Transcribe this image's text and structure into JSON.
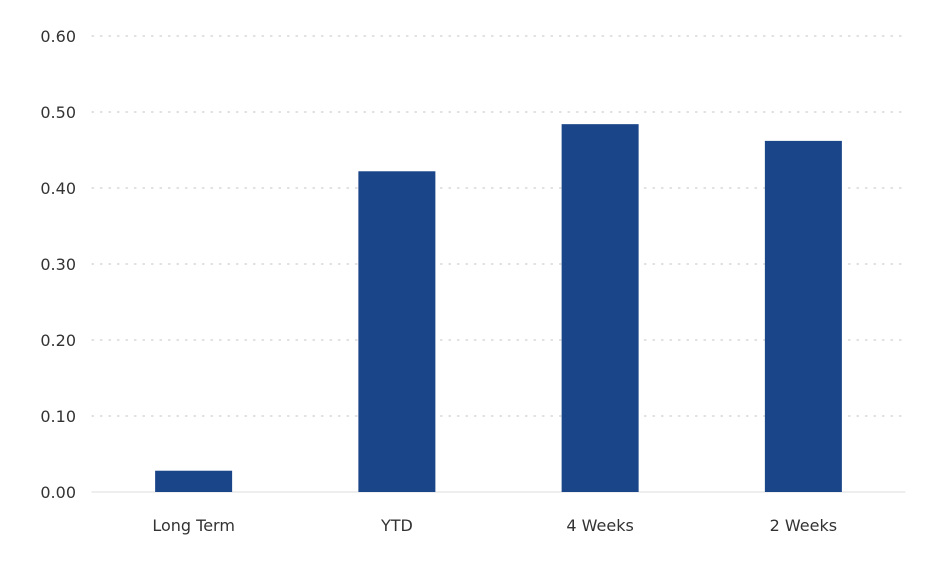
{
  "chart_data": {
    "type": "bar",
    "categories": [
      "Long Term",
      "YTD",
      "4 Weeks",
      "2 Weeks"
    ],
    "values": [
      0.028,
      0.422,
      0.484,
      0.462
    ],
    "y_ticks": [
      "0.00",
      "0.10",
      "0.20",
      "0.30",
      "0.40",
      "0.50",
      "0.60"
    ],
    "ylim": [
      0,
      0.6
    ],
    "title": "",
    "xlabel": "",
    "ylabel": "",
    "grid": "dotted horizontal",
    "legend": "none",
    "colors": {
      "bar": "#1a4589",
      "grid": "#cfcfcf",
      "text": "#333333"
    }
  }
}
